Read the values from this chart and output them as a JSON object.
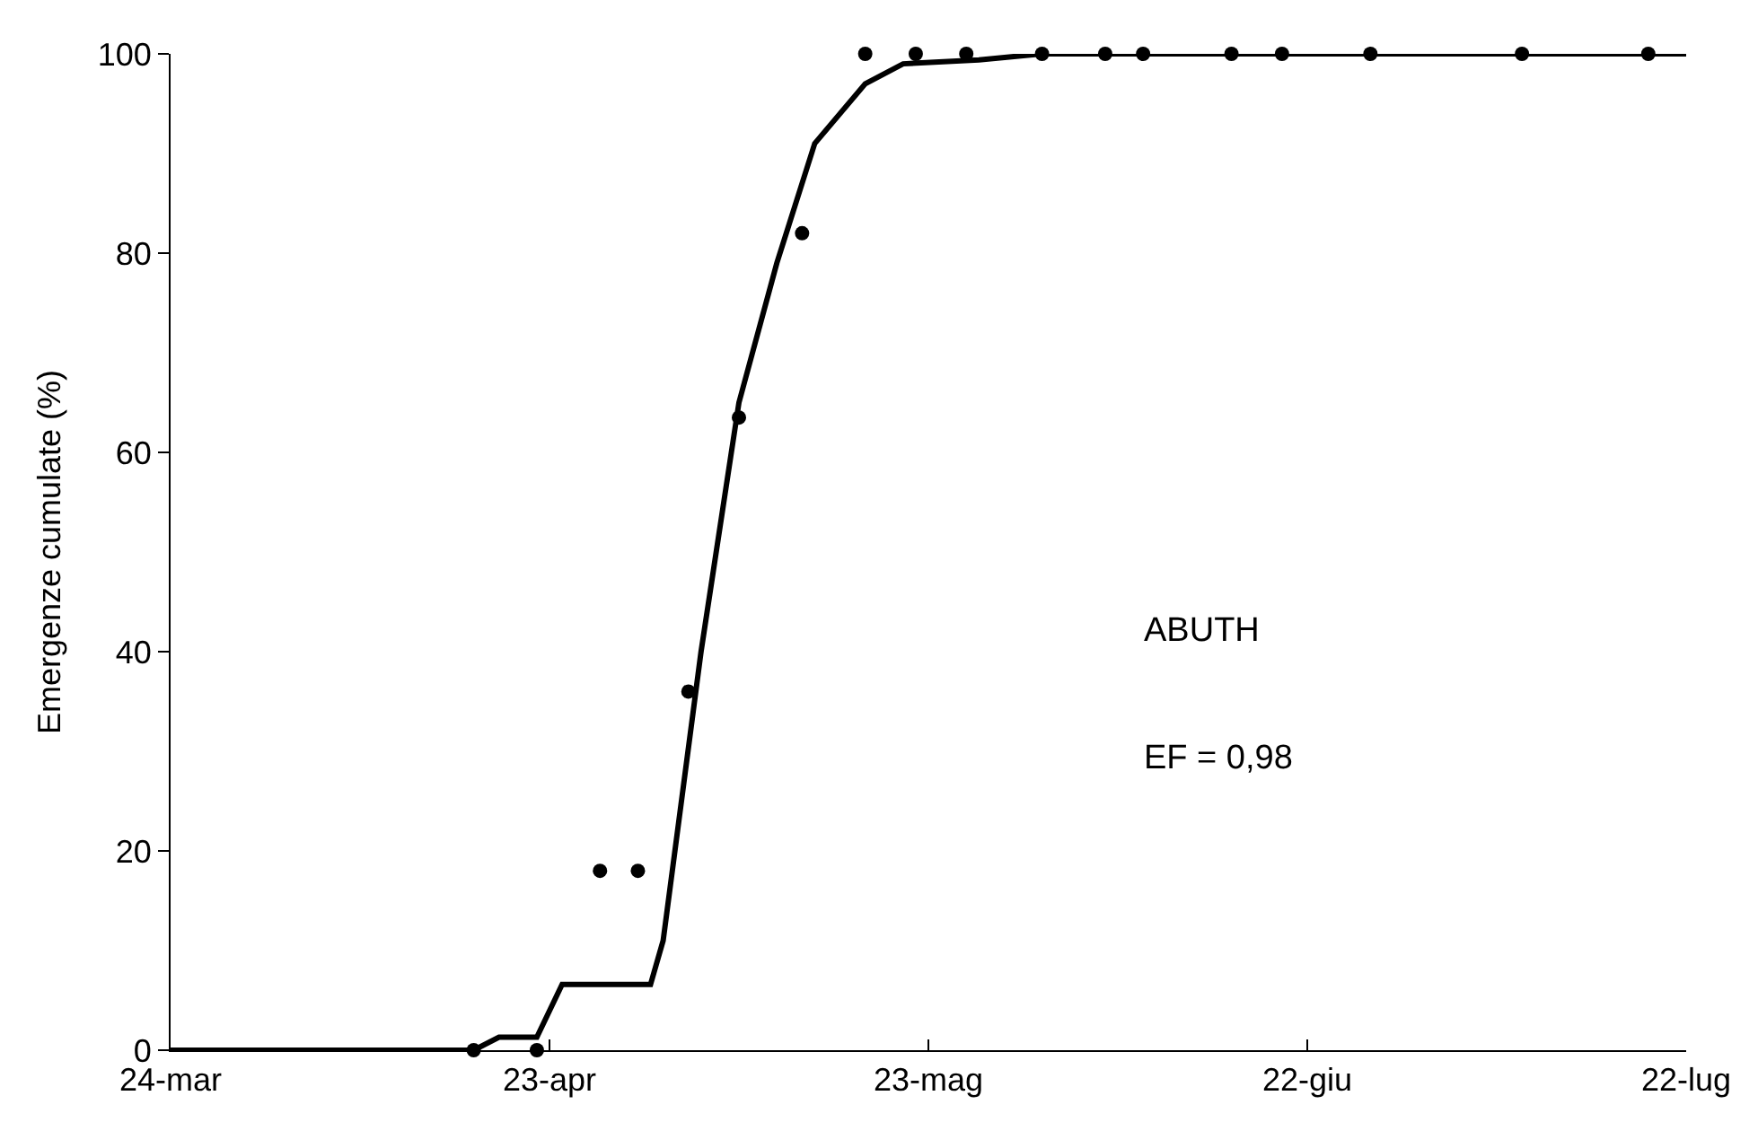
{
  "chart_data": {
    "type": "scatter",
    "ylabel": "Emergenze cumulate (%)",
    "annotations": [
      "ABUTH",
      "EF = 0,98"
    ],
    "xlim": [
      "--03-24",
      "--07-22"
    ],
    "xticks": [
      {
        "value": "--03-24",
        "label": "24-mar"
      },
      {
        "value": "--04-23",
        "label": "23-apr"
      },
      {
        "value": "--05-23",
        "label": "23-mag"
      },
      {
        "value": "--06-22",
        "label": "22-giu"
      },
      {
        "value": "--07-22",
        "label": "22-lug"
      }
    ],
    "ylim": [
      0,
      100
    ],
    "yticks": [
      0,
      20,
      40,
      60,
      80,
      100
    ],
    "grid": false,
    "legend": false,
    "series": [
      {
        "marker": "circle",
        "color": "#000000",
        "x": [
          "--04-17",
          "--04-22",
          "--04-27",
          "--04-30",
          "--05-04",
          "--05-08",
          "--05-13",
          "--05-18",
          "--05-22",
          "--05-26",
          "--06-01",
          "--06-06",
          "--06-09",
          "--06-16",
          "--06-20",
          "--06-27",
          "--07-09",
          "--07-19"
        ],
        "values": [
          0,
          0,
          18,
          18,
          36,
          63.5,
          82,
          100,
          100,
          100,
          100,
          100,
          100,
          100,
          100,
          100,
          100,
          100
        ]
      },
      {
        "type": "line",
        "marker": "none",
        "line_style": "solid",
        "color": "#000000",
        "x": [
          "--03-24",
          "--04-17",
          "--04-19",
          "--04-22",
          "--04-24",
          "--05-01",
          "--05-02",
          "--05-05",
          "--05-08",
          "--05-11",
          "--05-14",
          "--05-18",
          "--05-21",
          "--05-27",
          "--06-01",
          "--07-22"
        ],
        "values": [
          0,
          0,
          1.3,
          1.3,
          6.6,
          6.6,
          11,
          40,
          65,
          79,
          91,
          97,
          99,
          99.4,
          100,
          100
        ]
      }
    ]
  }
}
